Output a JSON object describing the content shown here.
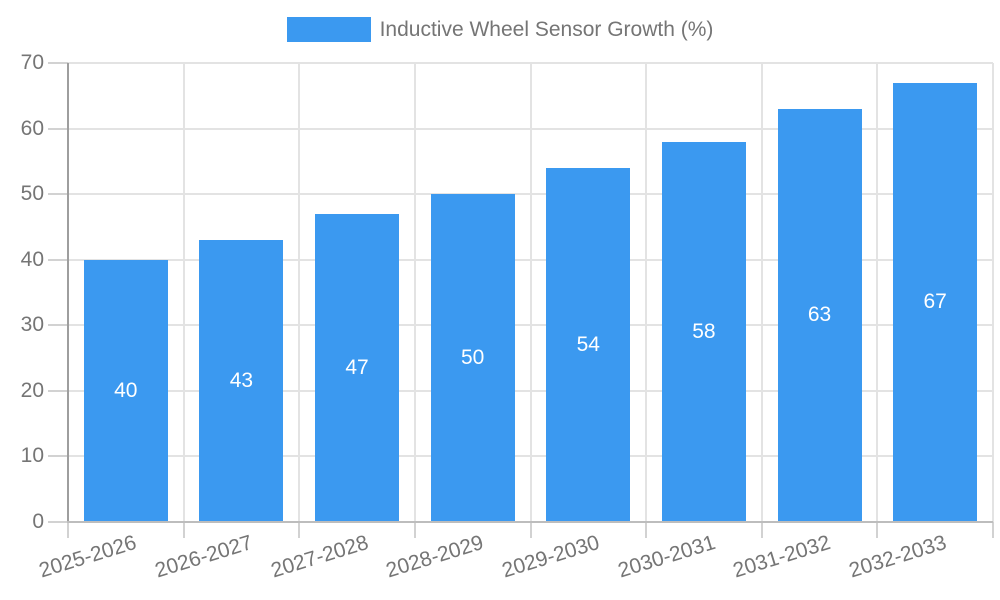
{
  "chart_data": {
    "type": "bar",
    "title": "",
    "legend": {
      "position": "top"
    },
    "categories": [
      "2025-2026",
      "2026-2027",
      "2027-2028",
      "2028-2029",
      "2029-2030",
      "2030-2031",
      "2031-2032",
      "2032-2033"
    ],
    "series": [
      {
        "name": "Inductive Wheel Sensor Growth (%)",
        "color": "#3b99f0",
        "values": [
          40,
          43,
          47,
          50,
          54,
          58,
          63,
          67
        ]
      }
    ],
    "value_labels": {
      "show": true,
      "color": "#ffffff",
      "position": "center-of-bar"
    },
    "xlabel": "",
    "ylabel": "",
    "ylim": [
      0,
      70
    ],
    "yticks": [
      0,
      10,
      20,
      30,
      40,
      50,
      60,
      70
    ],
    "grid": true,
    "x_tick_rotation_deg": -17,
    "colors": {
      "axis_text": "#757575",
      "grid_line": "#e3e3e3",
      "tick_mark": "#d2d2d2",
      "y_axis_line": "#9e9e9e",
      "x_axis_line": "#bdbdbd",
      "background": "#ffffff"
    }
  }
}
